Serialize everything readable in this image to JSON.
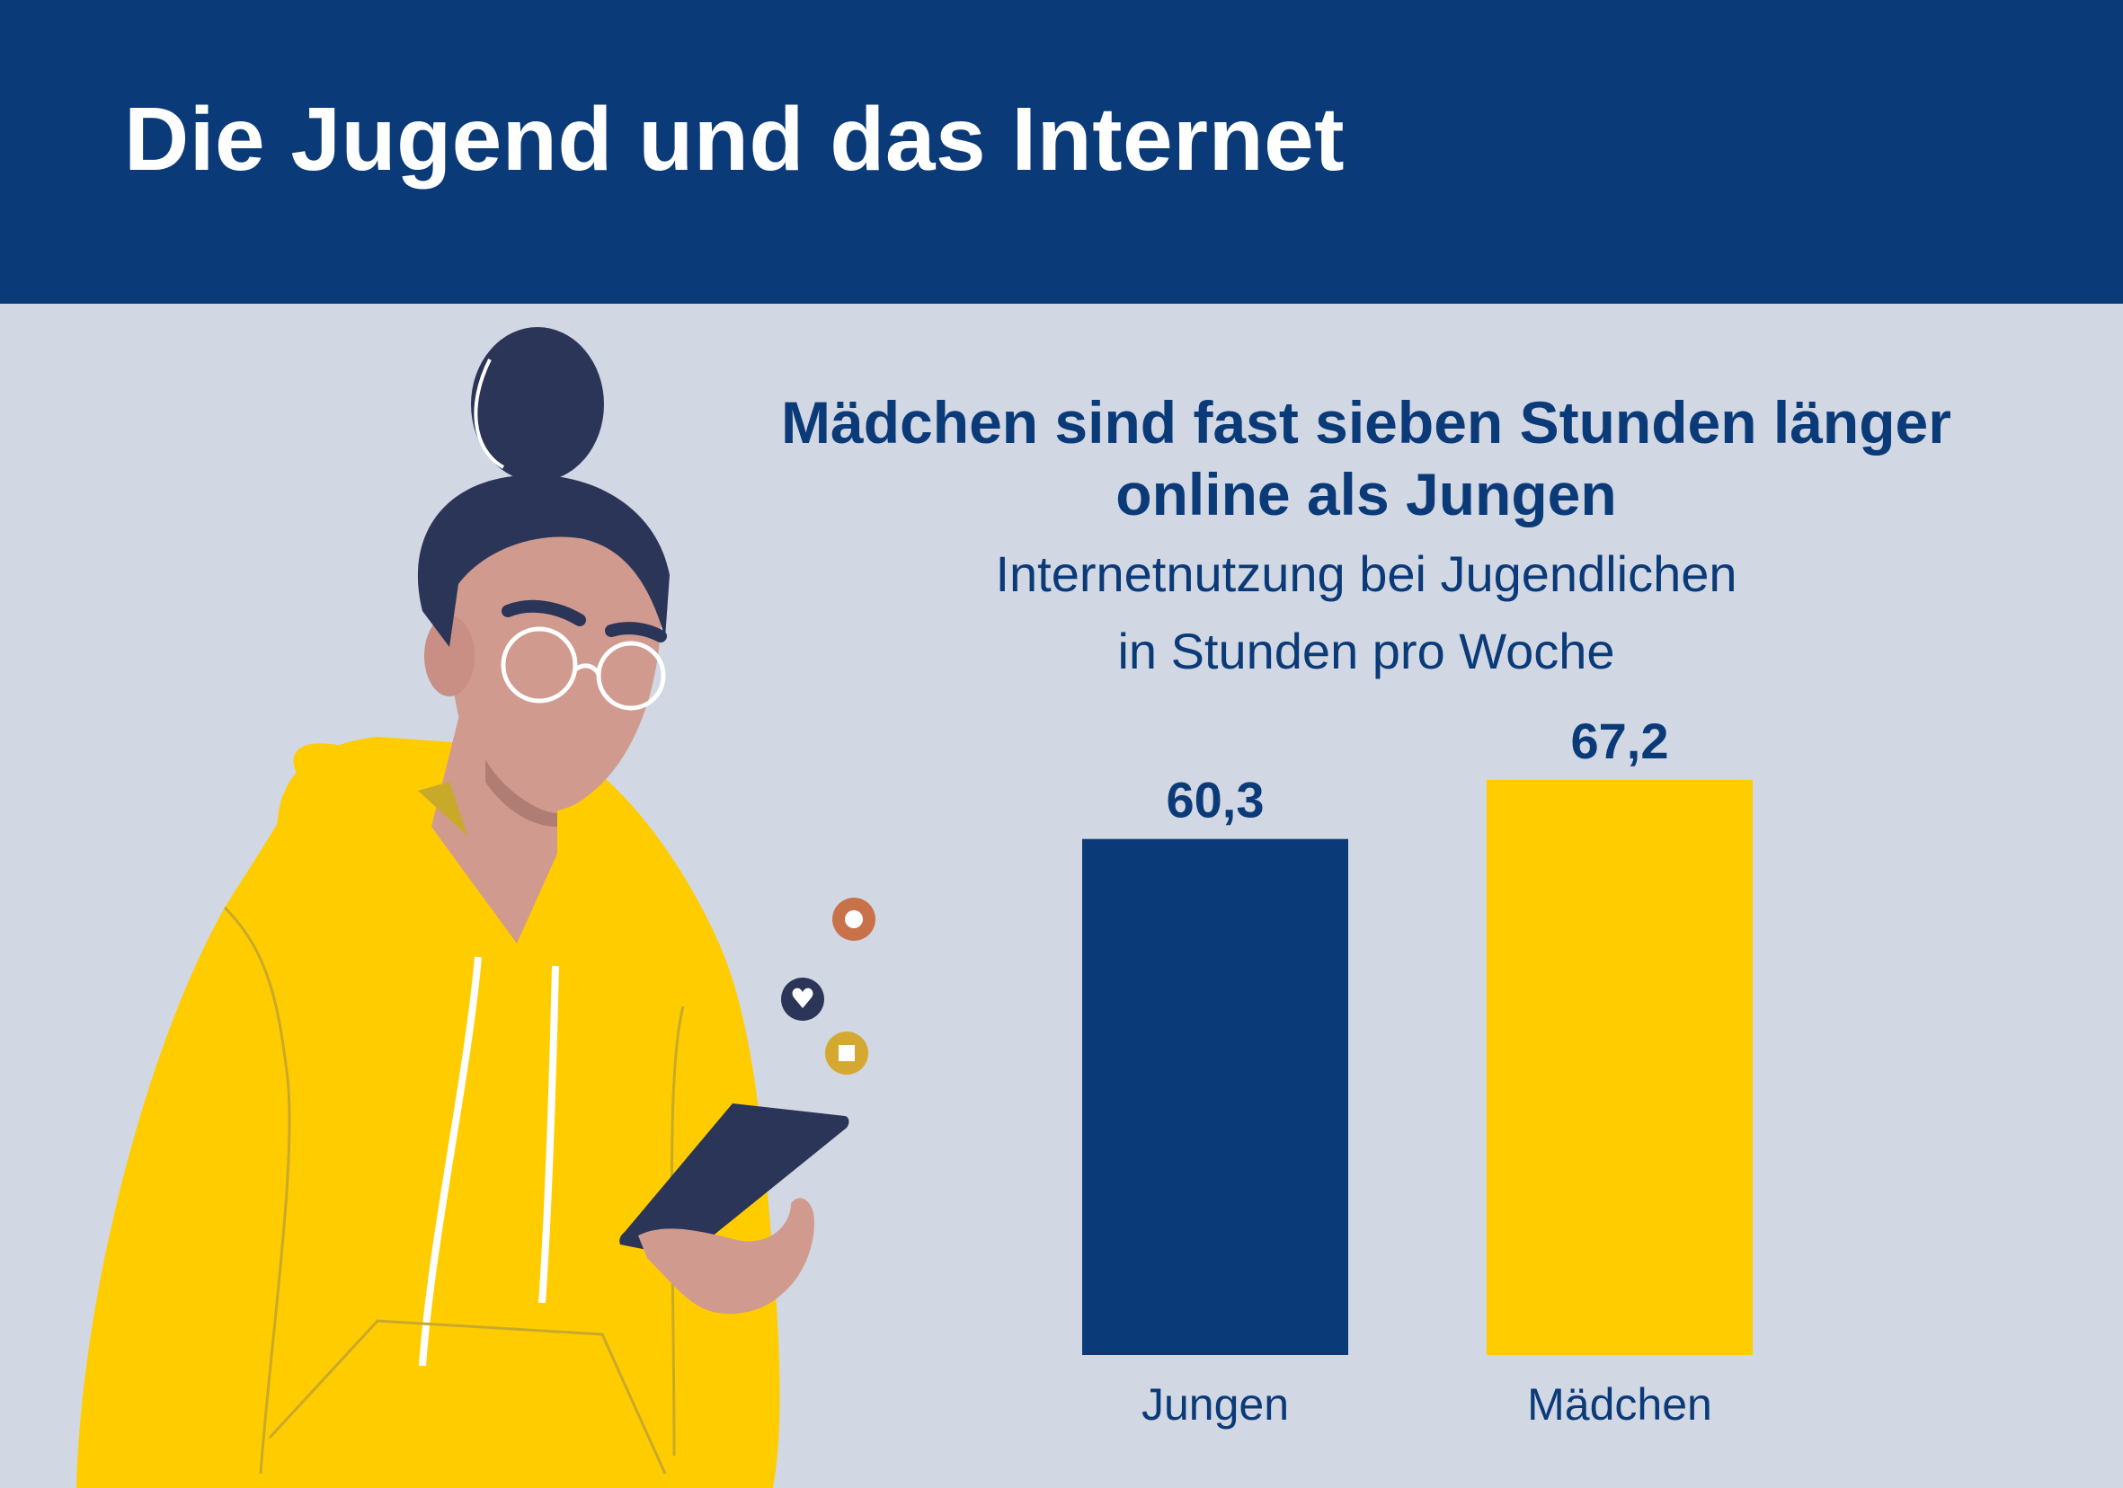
{
  "header": {
    "title": "Die Jugend und das Internet"
  },
  "colors": {
    "header_bg": "#0b3a78",
    "background": "#d1d7e3",
    "bar_jungen": "#0b3a78",
    "bar_maedchen": "#ffcc00"
  },
  "illustration": {
    "description_icons": [
      "teen-girl-icon",
      "smartphone-icon",
      "heart-icon",
      "circle-notification-icon",
      "square-notification-icon"
    ]
  },
  "chart_data": {
    "type": "bar",
    "title_line1": "Mädchen sind fast sieben Stunden länger",
    "title_line2": "online als Jungen",
    "subtitle_line1": "Internetnutzung bei Jugendlichen",
    "subtitle_line2": "in Stunden pro Woche",
    "categories": [
      "Jungen",
      "Mädchen"
    ],
    "values": [
      60.3,
      67.2
    ],
    "value_labels": [
      "60,3",
      "67,2"
    ],
    "colors": [
      "#0b3a78",
      "#ffcc00"
    ],
    "ylim": [
      0,
      67.2
    ],
    "grid": false
  }
}
